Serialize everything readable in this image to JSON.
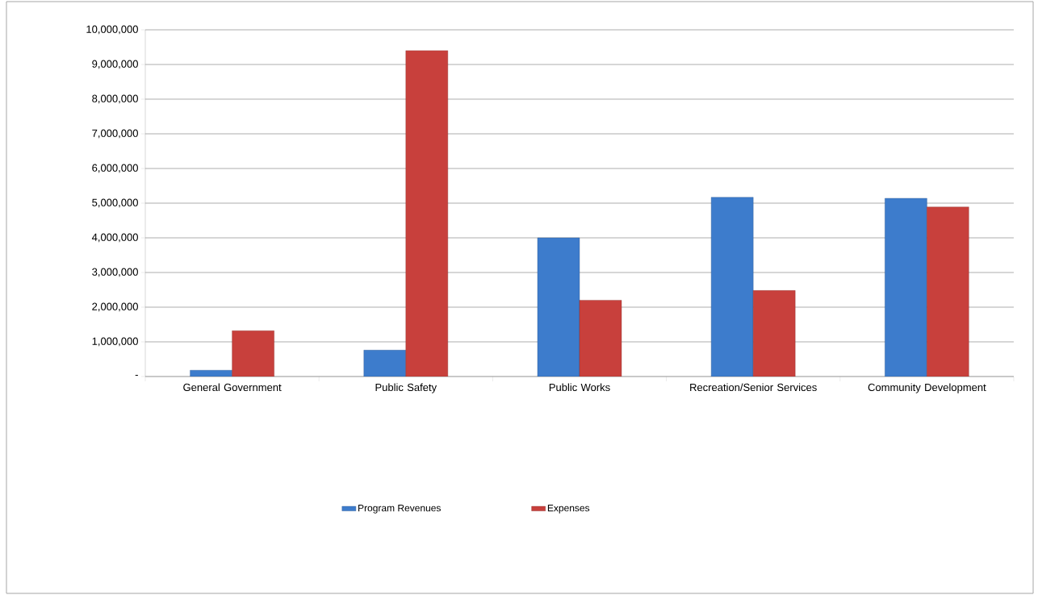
{
  "chart_data": {
    "type": "bar",
    "categories": [
      "General Government",
      "Public Safety",
      "Public Works",
      "Recreation/Senior Services",
      "Community Development"
    ],
    "series": [
      {
        "name": "Program Revenues",
        "color": "#3d7ccc",
        "values": [
          180000,
          760000,
          4000000,
          5170000,
          5140000
        ]
      },
      {
        "name": "Expenses",
        "color": "#c8403c",
        "values": [
          1320000,
          9400000,
          2200000,
          2480000,
          4890000
        ]
      }
    ],
    "ylim": [
      0,
      10000000
    ],
    "yticks": [
      {
        "value": 0,
        "label": "-"
      },
      {
        "value": 1000000,
        "label": "1,000,000"
      },
      {
        "value": 2000000,
        "label": "2,000,000"
      },
      {
        "value": 3000000,
        "label": "3,000,000"
      },
      {
        "value": 4000000,
        "label": "4,000,000"
      },
      {
        "value": 5000000,
        "label": "5,000,000"
      },
      {
        "value": 6000000,
        "label": "6,000,000"
      },
      {
        "value": 7000000,
        "label": "7,000,000"
      },
      {
        "value": 8000000,
        "label": "8,000,000"
      },
      {
        "value": 9000000,
        "label": "9,000,000"
      },
      {
        "value": 10000000,
        "label": "10,000,000"
      }
    ],
    "grid": "y",
    "legend": "bottom"
  }
}
